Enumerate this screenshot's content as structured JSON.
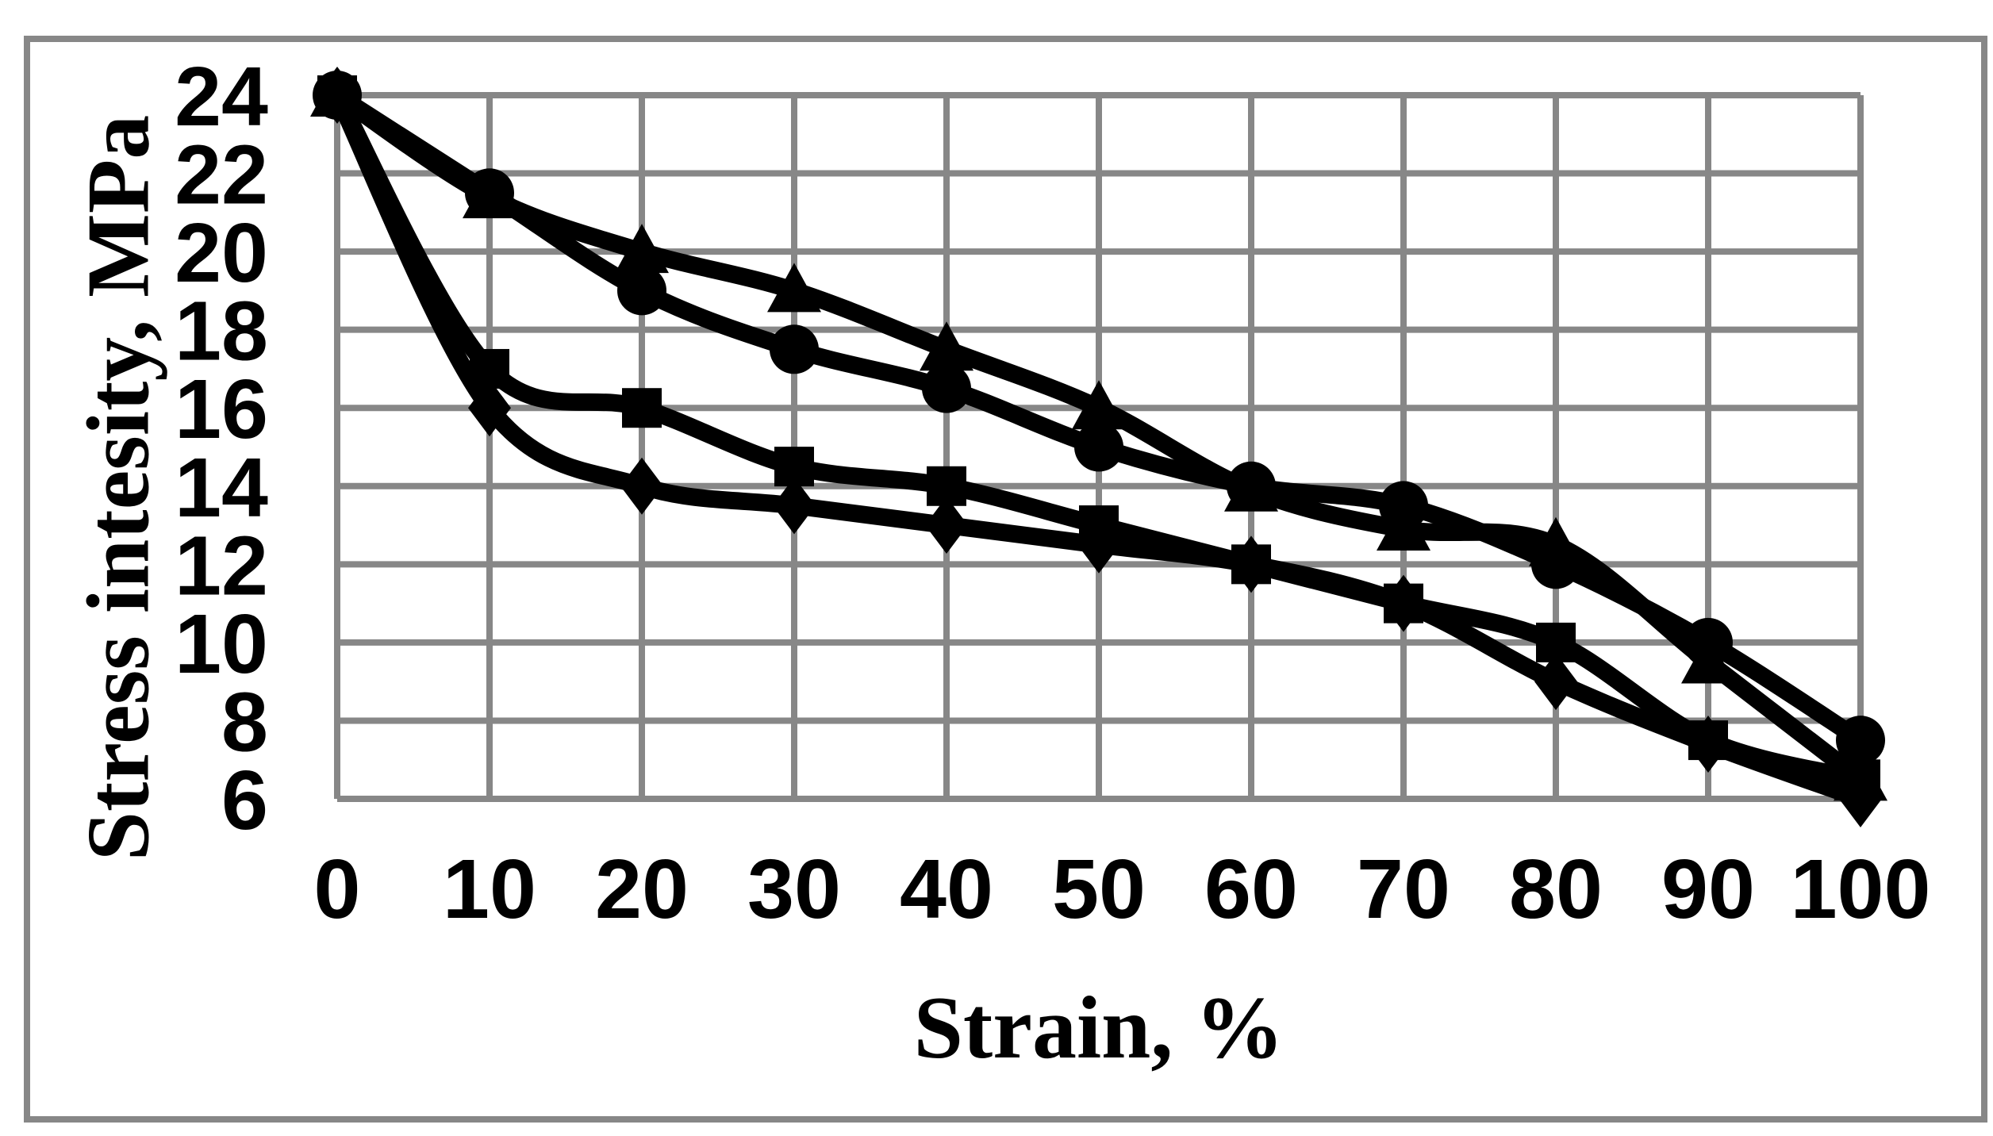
{
  "figure": {
    "background": "#ffffff",
    "border_color": "#878787"
  },
  "chart_data": {
    "type": "line",
    "title": "",
    "xlabel": "Strain, %",
    "ylabel": "Stress intesity, MPa",
    "xlim": [
      0,
      100
    ],
    "ylim": [
      6,
      24
    ],
    "x": [
      0,
      10,
      20,
      30,
      40,
      50,
      60,
      70,
      80,
      90,
      100
    ],
    "xticks": [
      "0",
      "10",
      "20",
      "30",
      "40",
      "50",
      "60",
      "70",
      "80",
      "90",
      "100"
    ],
    "yticks": [
      "24",
      "22",
      "20",
      "18",
      "16",
      "14",
      "12",
      "10",
      "8",
      "6"
    ],
    "grid": true,
    "legend_position": "none",
    "line_color": "#000000",
    "grid_color": "#878787",
    "series": [
      {
        "name": "series-diamond",
        "marker": "diamond",
        "values": [
          24,
          16,
          14,
          13.5,
          13,
          12.5,
          12,
          11,
          9,
          7.4,
          6
        ]
      },
      {
        "name": "series-square",
        "marker": "square",
        "values": [
          24,
          17,
          16,
          14.5,
          14,
          13,
          12,
          11,
          10,
          7.5,
          6.5
        ]
      },
      {
        "name": "series-triangle",
        "marker": "triangle",
        "values": [
          24,
          21.4,
          20,
          19,
          17.5,
          16,
          13.9,
          12.9,
          12.5,
          9.5,
          6.5
        ]
      },
      {
        "name": "series-circle",
        "marker": "circle",
        "values": [
          24,
          21.5,
          19,
          17.5,
          16.5,
          15,
          14,
          13.5,
          12,
          10,
          7.5
        ]
      }
    ]
  }
}
